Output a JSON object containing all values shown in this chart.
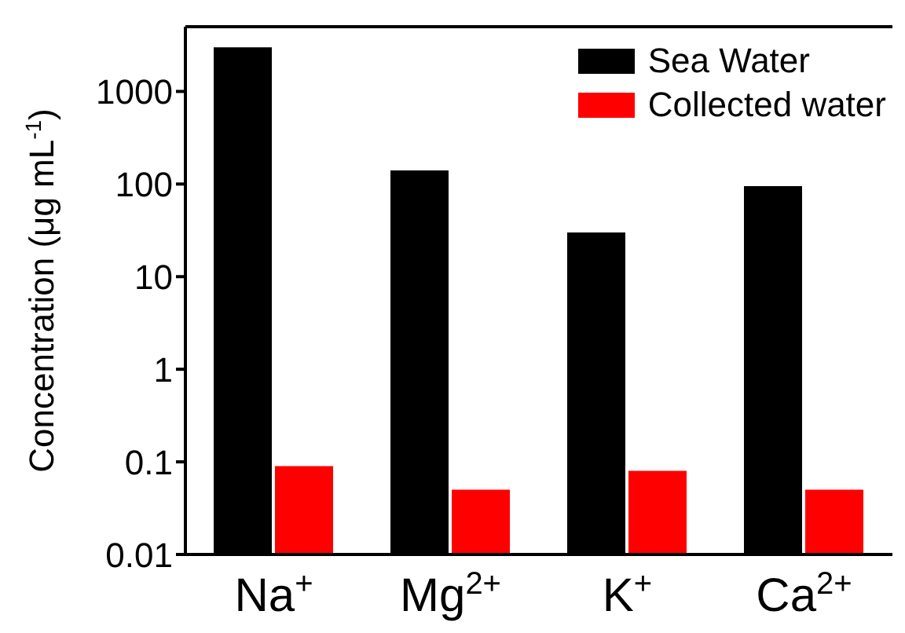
{
  "chart_data": {
    "type": "bar",
    "ylabel": "Concentration (μg mL$^{-1}$)",
    "categories": [
      "Na$^{+}$",
      "Mg$^{2+}$",
      "K$^{+}$",
      "Ca$^{2+}$"
    ],
    "series": [
      {
        "name": "Sea Water",
        "color": "#000000",
        "values": [
          3000,
          140,
          30,
          95
        ]
      },
      {
        "name": "Collected water",
        "color": "#ff0000",
        "values": [
          0.09,
          0.05,
          0.08,
          0.05
        ]
      }
    ],
    "log": true,
    "ylim": [
      0.01,
      5000
    ],
    "yticks": [
      0.01,
      0.1,
      1,
      10,
      100,
      1000
    ],
    "legend": "top right",
    "grid": false
  }
}
